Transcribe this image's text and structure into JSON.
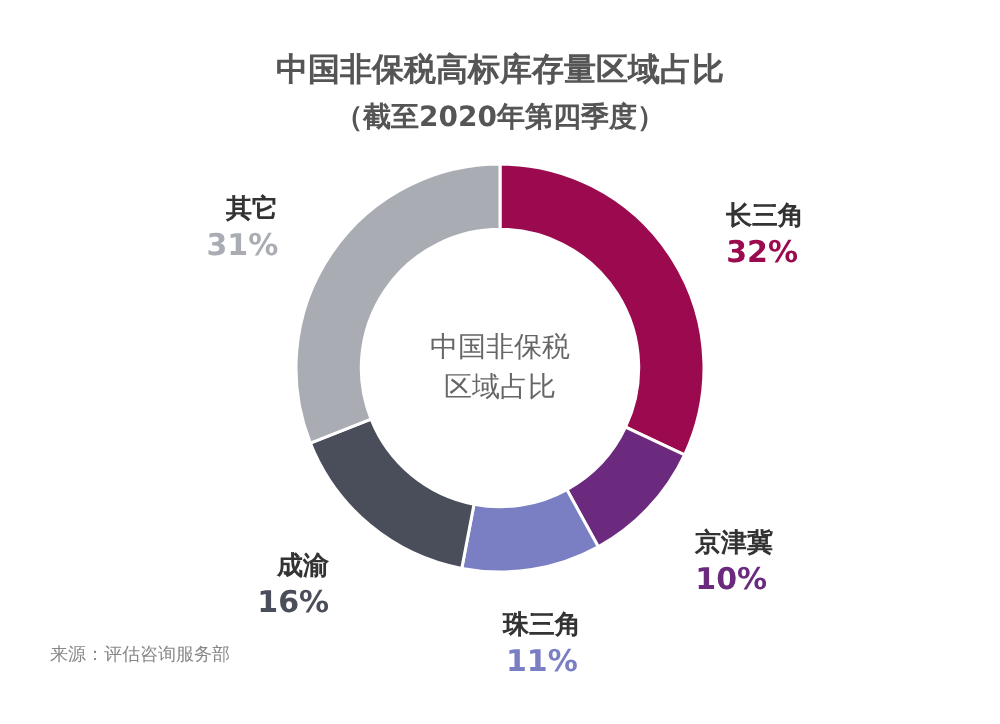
{
  "chart_data": {
    "type": "donut",
    "title": "中国非保税高标库存量区域占比",
    "subtitle": "（截至2020年第四季度）",
    "categories": [
      "长三角",
      "京津冀",
      "珠三角",
      "成渝",
      "其它"
    ],
    "values": [
      32,
      10,
      11,
      16,
      31
    ],
    "value_labels": [
      "32%",
      "10%",
      "11%",
      "16%",
      "31%"
    ],
    "colors": [
      "#9b0a4e",
      "#6b2a7e",
      "#7a7fc4",
      "#4a4e5a",
      "#a9adb3"
    ],
    "annotations": [
      "中国非保税",
      "区域占比",
      "来源：评估咨询服务部"
    ]
  }
}
